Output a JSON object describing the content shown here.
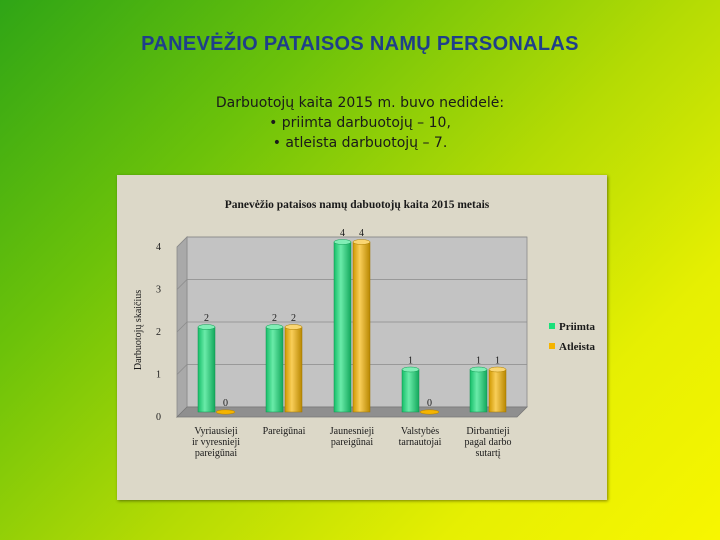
{
  "slide": {
    "title": "PANEVĖŽIO PATAISOS NAMŲ PERSONALAS",
    "intro": "Darbuotojų kaita 2015 m. buvo nedidelė:",
    "bullet_1": "• priimta darbuotojų – 10,",
    "bullet_2": "• atleista darbuotojų – 7."
  },
  "chart_data": {
    "type": "bar",
    "title": "Panevėžio pataisos namų dabuotojų kaita 2015 metais",
    "xlabel": "",
    "ylabel": "Darbuotojų skaičius",
    "ylim": [
      0,
      4
    ],
    "yticks": [
      "0",
      "1",
      "2",
      "3",
      "4"
    ],
    "grid": true,
    "legend_position": "right",
    "categories": [
      [
        "Vyriausieji",
        "ir vyresnieji",
        "pareigūnai"
      ],
      [
        "Pareigūnai"
      ],
      [
        "Jaunesnieji",
        "pareigūnai"
      ],
      [
        "Valstybės",
        "tarnautojai"
      ],
      [
        "Dirbantieji",
        "pagal darbo",
        "sutartį"
      ]
    ],
    "series": [
      {
        "name": "Priimta",
        "values": [
          2,
          2,
          4,
          1,
          1
        ],
        "color": "#19e07a"
      },
      {
        "name": "Atleista",
        "values": [
          0,
          2,
          4,
          0,
          1
        ],
        "color": "#f5b400"
      }
    ]
  }
}
